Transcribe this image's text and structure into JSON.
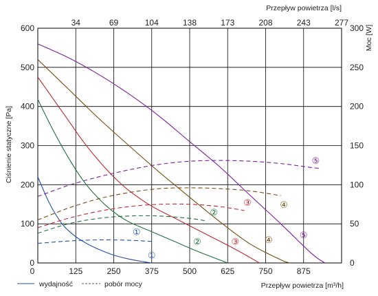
{
  "chart_data": {
    "type": "line",
    "x_bottom": {
      "label": "Przepływ powietrza [m³/h]",
      "ticks": [
        0,
        125,
        250,
        375,
        500,
        625,
        750,
        875
      ],
      "range": [
        0,
        1000
      ]
    },
    "x_top": {
      "label": "Przepływ powietrza [l/s]",
      "ticks": [
        "34",
        "69",
        "104",
        "138",
        "173",
        "208",
        "243",
        "277"
      ]
    },
    "y_left": {
      "label": "Ciśnienie statyczne [Pa]",
      "ticks": [
        0,
        100,
        200,
        300,
        400,
        500,
        600
      ],
      "range": [
        0,
        600
      ]
    },
    "y_right": {
      "label": "Moc [W]",
      "ticks": [
        0,
        50,
        100,
        150,
        200,
        250,
        300
      ],
      "range": [
        0,
        300
      ]
    },
    "grid": true,
    "legend": [
      {
        "label": "wydajność",
        "style": "solid"
      },
      {
        "label": "pobór mocy",
        "style": "dashed"
      }
    ],
    "series": [
      {
        "id": "1",
        "marker": "①",
        "color": "#1f4fa8",
        "pressure": {
          "x": [
            0,
            40,
            80,
            120,
            160,
            200,
            250,
            300,
            350,
            375
          ],
          "y": [
            220,
            150,
            100,
            70,
            50,
            35,
            20,
            10,
            3,
            0
          ]
        },
        "power": {
          "x": [
            0,
            100,
            200,
            300,
            375
          ],
          "y": [
            25,
            28,
            29.5,
            29,
            27.5
          ]
        }
      },
      {
        "id": "2",
        "marker": "②",
        "color": "#1e6f3c",
        "pressure": {
          "x": [
            0,
            50,
            100,
            150,
            200,
            250,
            300,
            375,
            450,
            525,
            625
          ],
          "y": [
            418,
            340,
            270,
            210,
            165,
            130,
            105,
            80,
            55,
            30,
            0
          ]
        },
        "power": {
          "x": [
            0,
            100,
            200,
            300,
            400,
            500,
            550
          ],
          "y": [
            38,
            50,
            57,
            60,
            60,
            57,
            54
          ]
        }
      },
      {
        "id": "3",
        "marker": "③",
        "color": "#c1272d",
        "pressure": {
          "x": [
            0,
            50,
            100,
            150,
            200,
            250,
            300,
            375,
            450,
            550,
            650,
            730
          ],
          "y": [
            475,
            420,
            365,
            310,
            262,
            220,
            185,
            145,
            115,
            75,
            35,
            0
          ]
        },
        "power": {
          "x": [
            0,
            100,
            200,
            300,
            400,
            500,
            600,
            680
          ],
          "y": [
            45,
            57,
            66,
            72,
            75,
            75,
            72,
            67
          ]
        }
      },
      {
        "id": "4",
        "marker": "④",
        "color": "#7a4a0e",
        "pressure": {
          "x": [
            0,
            100,
            200,
            300,
            400,
            500,
            600,
            700,
            800,
            830
          ],
          "y": [
            520,
            445,
            370,
            300,
            232,
            168,
            105,
            48,
            8,
            0
          ]
        },
        "power": {
          "x": [
            0,
            100,
            200,
            300,
            400,
            500,
            600,
            700,
            800
          ],
          "y": [
            55,
            70,
            82,
            90,
            95,
            96,
            95,
            92,
            86
          ]
        }
      },
      {
        "id": "5",
        "marker": "⑤",
        "color": "#7b1e9a",
        "pressure": {
          "x": [
            0,
            100,
            200,
            300,
            400,
            500,
            600,
            700,
            800,
            900,
            945
          ],
          "y": [
            560,
            525,
            482,
            432,
            375,
            310,
            245,
            172,
            100,
            25,
            0
          ]
        },
        "power": {
          "x": [
            0,
            100,
            200,
            300,
            400,
            500,
            600,
            700,
            800,
            900,
            925
          ],
          "y": [
            85,
            99,
            110,
            119,
            126,
            130,
            131,
            130,
            127,
            122,
            121
          ]
        }
      }
    ],
    "markers": [
      {
        "text": "①",
        "series": "1",
        "x": 375,
        "y": 20
      },
      {
        "text": "①",
        "series": "1",
        "x": 325,
        "y": 80
      },
      {
        "text": "②",
        "series": "2",
        "x": 525,
        "y": 55
      },
      {
        "text": "②",
        "series": "2",
        "x": 580,
        "y": 130
      },
      {
        "text": "③",
        "series": "3",
        "x": 650,
        "y": 55
      },
      {
        "text": "③",
        "series": "3",
        "x": 690,
        "y": 155
      },
      {
        "text": "④",
        "series": "4",
        "x": 760,
        "y": 60
      },
      {
        "text": "④",
        "series": "4",
        "x": 810,
        "y": 150
      },
      {
        "text": "⑤",
        "series": "5",
        "x": 875,
        "y": 72
      },
      {
        "text": "⑤",
        "series": "5",
        "x": 915,
        "y": 262
      }
    ]
  }
}
